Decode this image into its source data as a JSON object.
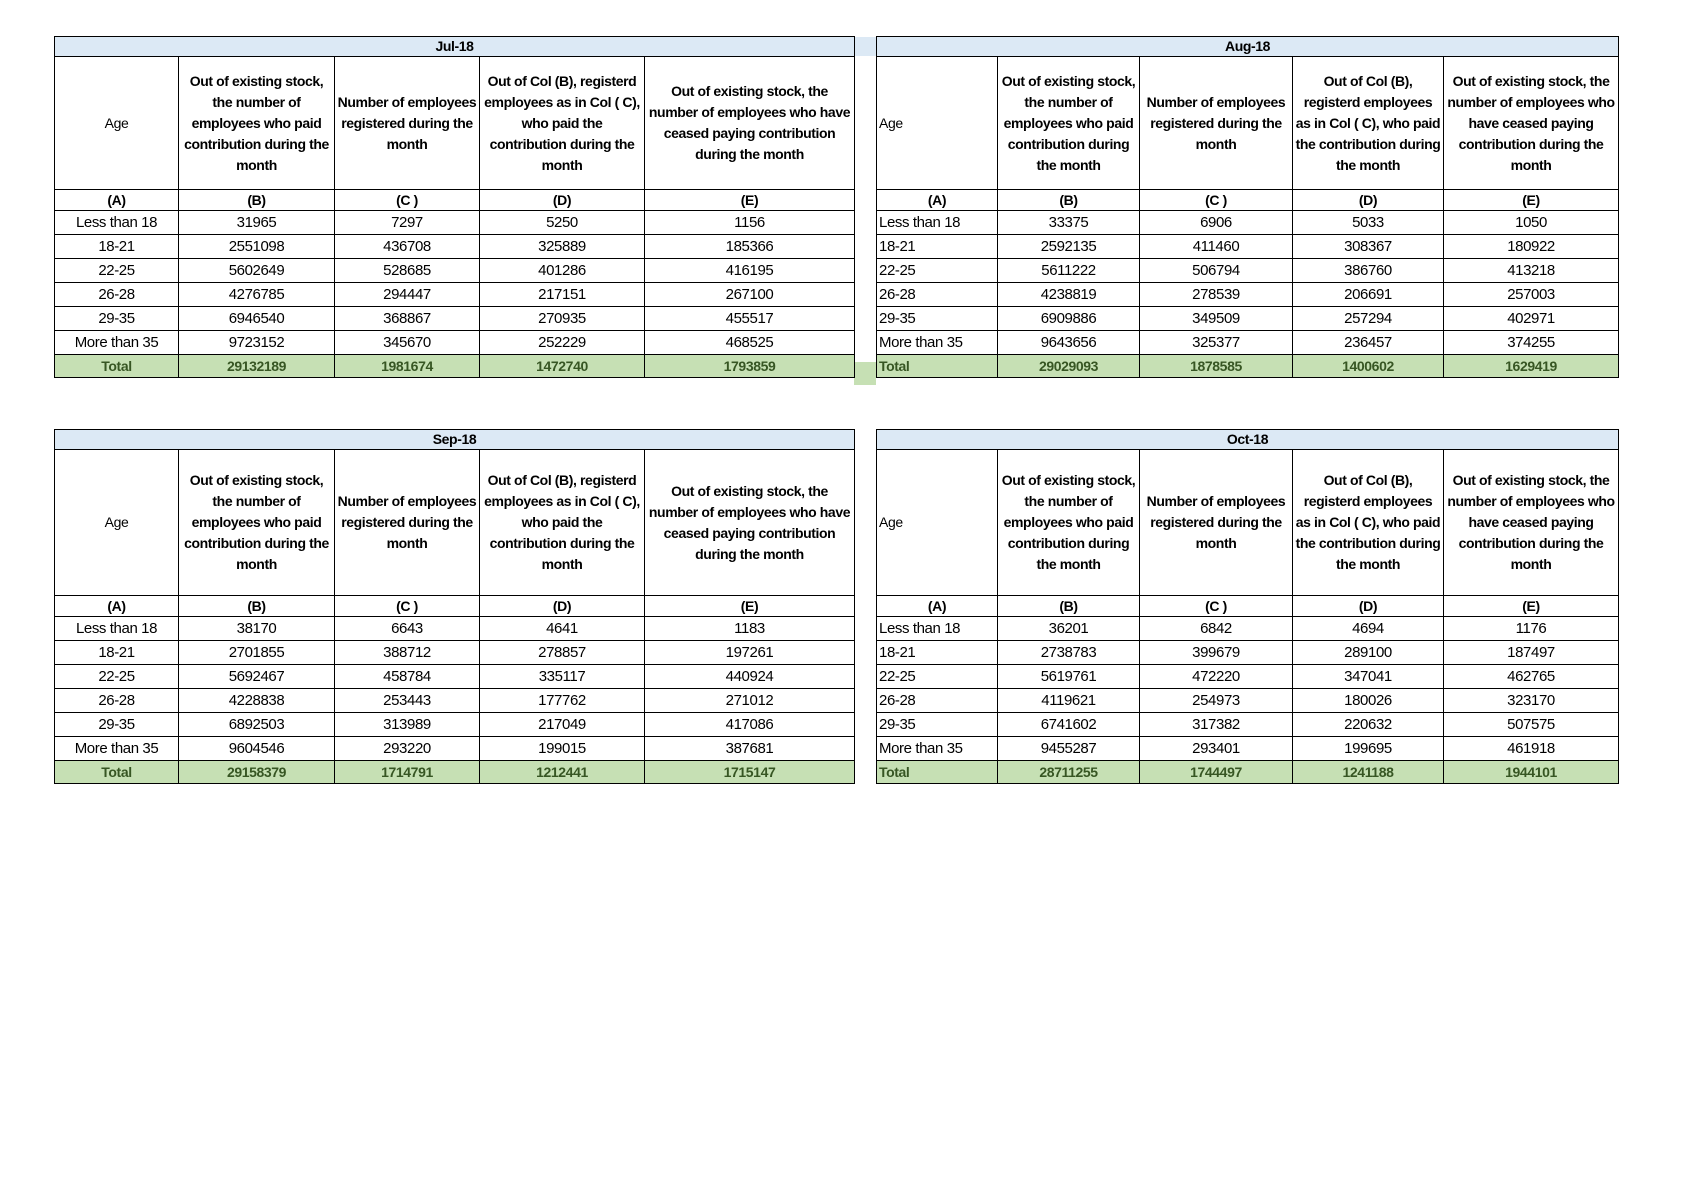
{
  "header_texts": {
    "age": "Age",
    "b": "Out of existing stock, the number of employees who paid contribution during the month",
    "c": "Number of employees registered during the month",
    "d": "Out of Col (B), registerd employees as in Col ( C), who paid the contribution during the month",
    "e": "Out of existing stock, the number of  employees  who have ceased paying contribution during the month"
  },
  "letters": [
    "(A)",
    "(B)",
    "(C )",
    "(D)",
    "(E)"
  ],
  "tables": [
    {
      "title": "Jul-18",
      "side": "left",
      "rows": [
        {
          "age": "Less than 18",
          "values": [
            "31965",
            "7297",
            "5250",
            "1156"
          ]
        },
        {
          "age": "18-21",
          "values": [
            "2551098",
            "436708",
            "325889",
            "185366"
          ]
        },
        {
          "age": "22-25",
          "values": [
            "5602649",
            "528685",
            "401286",
            "416195"
          ]
        },
        {
          "age": "26-28",
          "values": [
            "4276785",
            "294447",
            "217151",
            "267100"
          ]
        },
        {
          "age": "29-35",
          "values": [
            "6946540",
            "368867",
            "270935",
            "455517"
          ]
        },
        {
          "age": "More than 35",
          "values": [
            "9723152",
            "345670",
            "252229",
            "468525"
          ]
        }
      ],
      "total": {
        "label": "Total",
        "values": [
          "29132189",
          "1981674",
          "1472740",
          "1793859"
        ]
      }
    },
    {
      "title": "Aug-18",
      "side": "right",
      "rows": [
        {
          "age": "Less than 18",
          "values": [
            "33375",
            "6906",
            "5033",
            "1050"
          ]
        },
        {
          "age": "18-21",
          "values": [
            "2592135",
            "411460",
            "308367",
            "180922"
          ]
        },
        {
          "age": "22-25",
          "values": [
            "5611222",
            "506794",
            "386760",
            "413218"
          ]
        },
        {
          "age": "26-28",
          "values": [
            "4238819",
            "278539",
            "206691",
            "257003"
          ]
        },
        {
          "age": "29-35",
          "values": [
            "6909886",
            "349509",
            "257294",
            "402971"
          ]
        },
        {
          "age": "More than 35",
          "values": [
            "9643656",
            "325377",
            "236457",
            "374255"
          ]
        }
      ],
      "total": {
        "label": "Total",
        "values": [
          "29029093",
          "1878585",
          "1400602",
          "1629419"
        ]
      }
    },
    {
      "title": "Sep-18",
      "side": "left",
      "rows": [
        {
          "age": "Less than 18",
          "values": [
            "38170",
            "6643",
            "4641",
            "1183"
          ]
        },
        {
          "age": "18-21",
          "values": [
            "2701855",
            "388712",
            "278857",
            "197261"
          ]
        },
        {
          "age": "22-25",
          "values": [
            "5692467",
            "458784",
            "335117",
            "440924"
          ]
        },
        {
          "age": "26-28",
          "values": [
            "4228838",
            "253443",
            "177762",
            "271012"
          ]
        },
        {
          "age": "29-35",
          "values": [
            "6892503",
            "313989",
            "217049",
            "417086"
          ]
        },
        {
          "age": "More than 35",
          "values": [
            "9604546",
            "293220",
            "199015",
            "387681"
          ]
        }
      ],
      "total": {
        "label": "Total",
        "values": [
          "29158379",
          "1714791",
          "1212441",
          "1715147"
        ]
      }
    },
    {
      "title": "Oct-18",
      "side": "right",
      "rows": [
        {
          "age": "Less than 18",
          "values": [
            "36201",
            "6842",
            "4694",
            "1176"
          ]
        },
        {
          "age": "18-21",
          "values": [
            "2738783",
            "399679",
            "289100",
            "187497"
          ]
        },
        {
          "age": "22-25",
          "values": [
            "5619761",
            "472220",
            "347041",
            "462765"
          ]
        },
        {
          "age": "26-28",
          "values": [
            "4119621",
            "254973",
            "180026",
            "323170"
          ]
        },
        {
          "age": "29-35",
          "values": [
            "6741602",
            "317382",
            "220632",
            "507575"
          ]
        },
        {
          "age": "More than 35",
          "values": [
            "9455287",
            "293401",
            "199695",
            "461918"
          ]
        }
      ],
      "total": {
        "label": "Total",
        "values": [
          "28711255",
          "1744497",
          "1241188",
          "1944101"
        ]
      }
    }
  ],
  "colors": {
    "title_fill": "#dce9f5",
    "total_fill": "#c6e0b4",
    "total_text": "#375623"
  }
}
